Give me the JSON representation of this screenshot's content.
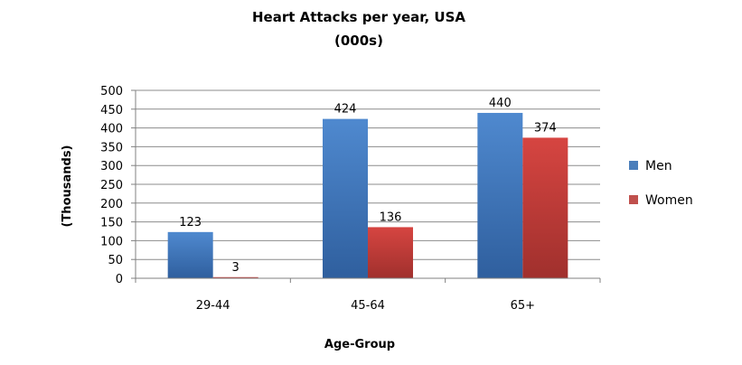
{
  "chart_data": {
    "type": "bar",
    "title": "Heart Attacks per year, USA",
    "subtitle": "(000s)",
    "xlabel": "Age-Group",
    "ylabel": "(Thousands)",
    "categories": [
      "29-44",
      "45-64",
      "65+"
    ],
    "series": [
      {
        "name": "Men",
        "values": [
          123,
          424,
          440
        ],
        "color": "#4a7ebb"
      },
      {
        "name": "Women",
        "values": [
          3,
          136,
          374
        ],
        "color": "#c0504d"
      }
    ],
    "ylim": [
      0,
      500
    ],
    "yticks": [
      0,
      50,
      100,
      150,
      200,
      250,
      300,
      350,
      400,
      450,
      500
    ],
    "grid": true,
    "legend": "right"
  }
}
